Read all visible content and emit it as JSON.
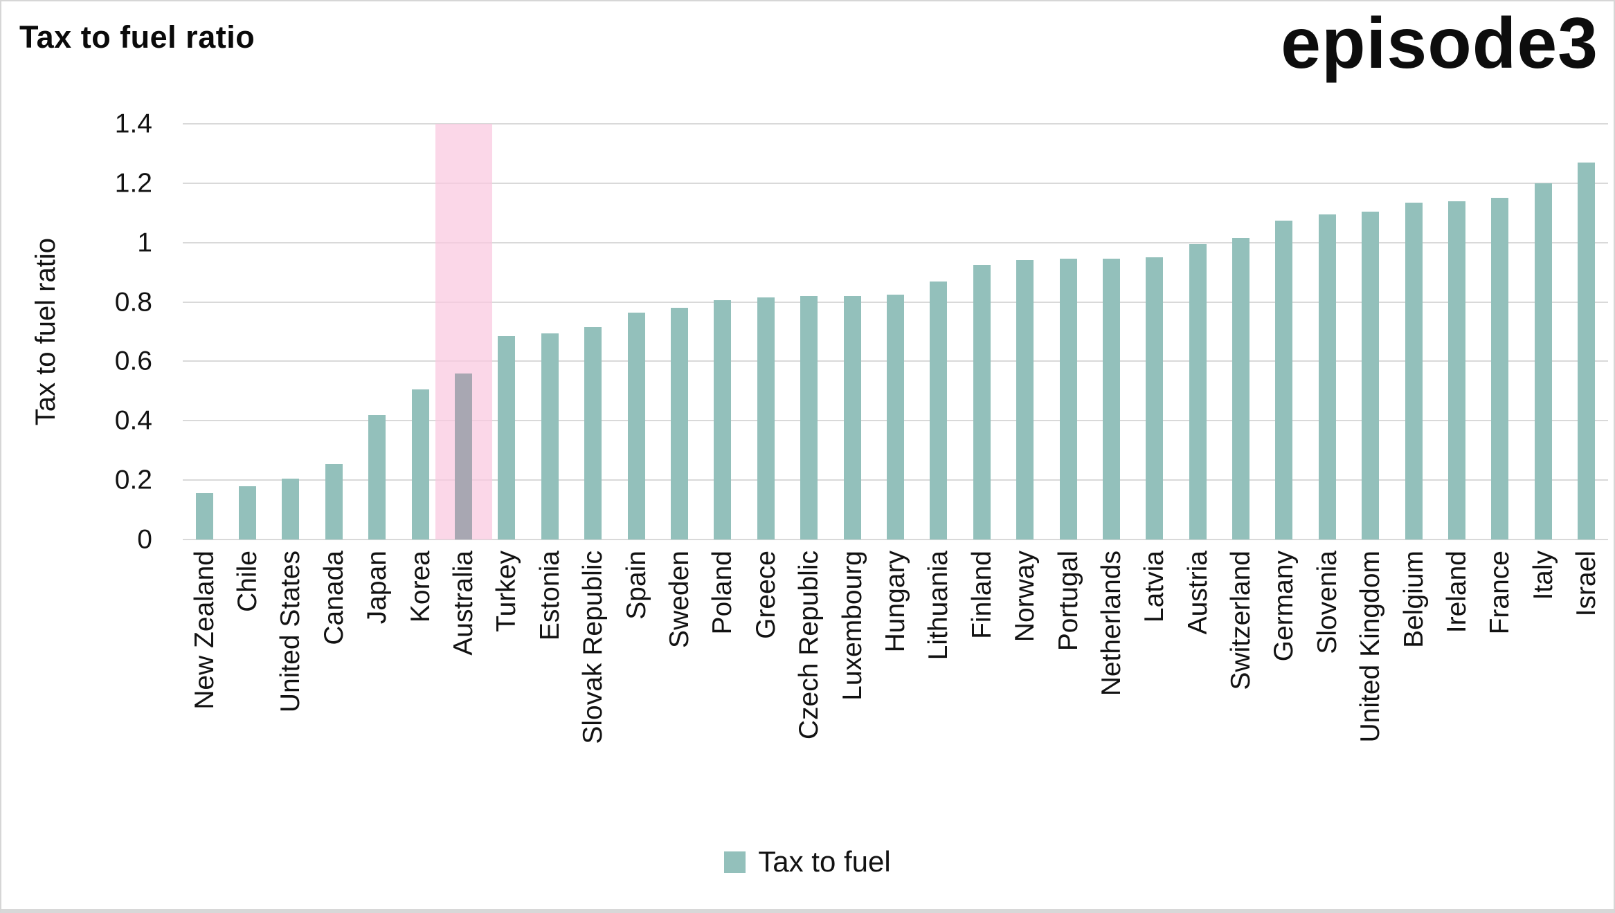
{
  "header": {
    "title": "Tax to fuel ratio",
    "logo": "episode3"
  },
  "legend": {
    "label": "Tax to fuel"
  },
  "chart_data": {
    "type": "bar",
    "title": "Tax to fuel ratio",
    "xlabel": "",
    "ylabel": "Tax to fuel ratio",
    "ylim": [
      0,
      1.4
    ],
    "grid": "horizontal",
    "legend_position": "bottom-center",
    "yticks": [
      {
        "value": 0,
        "label": "0"
      },
      {
        "value": 0.2,
        "label": "0.2"
      },
      {
        "value": 0.4,
        "label": "0.4"
      },
      {
        "value": 0.6,
        "label": "0.6"
      },
      {
        "value": 0.8,
        "label": "0.8"
      },
      {
        "value": 1,
        "label": "1"
      },
      {
        "value": 1.2,
        "label": "1.2"
      },
      {
        "value": 1.4,
        "label": "1.4"
      }
    ],
    "categories": [
      "New Zealand",
      "Chile",
      "United States",
      "Canada",
      "Japan",
      "Korea",
      "Australia",
      "Turkey",
      "Estonia",
      "Slovak Republic",
      "Spain",
      "Sweden",
      "Poland",
      "Greece",
      "Czech Republic",
      "Luxembourg",
      "Hungary",
      "Lithuania",
      "Finland",
      "Norway",
      "Portugal",
      "Netherlands",
      "Latvia",
      "Austria",
      "Switzerland",
      "Germany",
      "Slovenia",
      "United Kingdom",
      "Belgium",
      "Ireland",
      "France",
      "Italy",
      "Israel"
    ],
    "values": [
      0.155,
      0.18,
      0.205,
      0.255,
      0.42,
      0.505,
      0.56,
      0.685,
      0.695,
      0.715,
      0.765,
      0.78,
      0.805,
      0.815,
      0.82,
      0.82,
      0.825,
      0.87,
      0.925,
      0.94,
      0.945,
      0.945,
      0.95,
      0.995,
      1.015,
      1.075,
      1.095,
      1.105,
      1.135,
      1.14,
      1.15,
      1.2,
      1.27
    ],
    "series_name": "Tax to fuel",
    "highlight": {
      "category": "Australia",
      "bar_color": "#a8a7b2",
      "band_color_rgba": "rgba(250, 199, 223, 0.72)"
    },
    "colors": {
      "bar": "#93c0bb",
      "grid": "#d9d9d9",
      "text": "#121212"
    }
  }
}
